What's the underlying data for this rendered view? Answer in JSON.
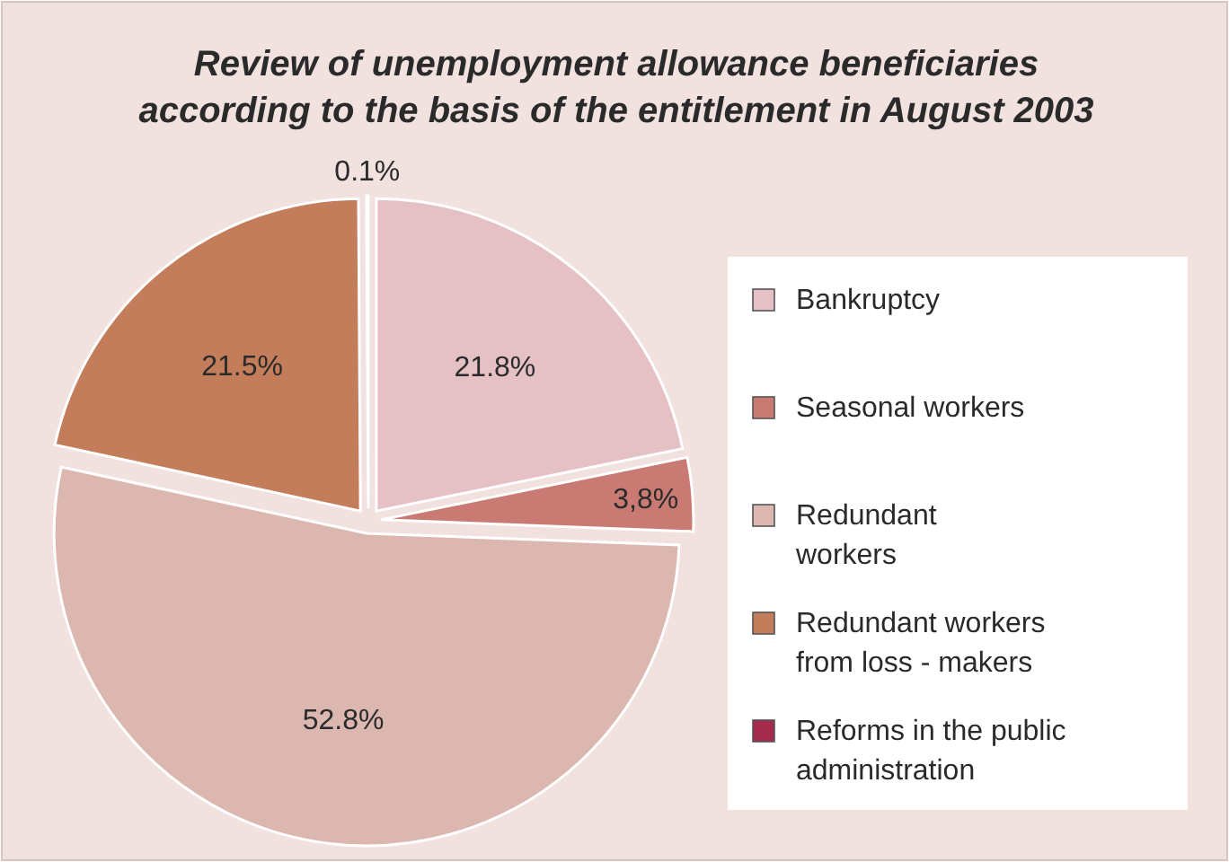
{
  "chart_data": {
    "type": "pie",
    "title": "Review of unemployment allowance beneficiaries\naccording to the basis of the entitlement in August 2003",
    "categories": [
      "Bankruptcy",
      "Seasonal workers",
      "Redundant\nworkers",
      "Redundant workers\nfrom loss - makers",
      "Reforms in the public\nadministration"
    ],
    "values": [
      21.8,
      3.8,
      52.8,
      21.5,
      0.1
    ],
    "value_labels": [
      "21.8%",
      "3,8%",
      "52.8%",
      "21.5%",
      "0.1%"
    ],
    "colors": [
      "#e5c1c5",
      "#c97b73",
      "#dcb7b0",
      "#c47d5b",
      "#a32c4c"
    ],
    "legend": "right"
  }
}
